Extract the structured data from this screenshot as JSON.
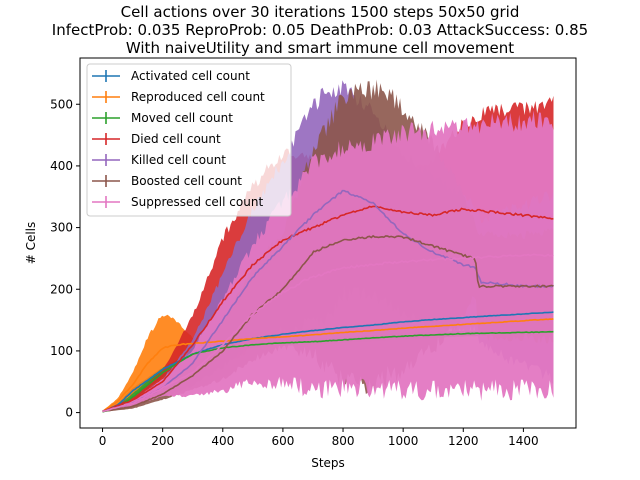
{
  "chart_data": {
    "type": "line",
    "title_lines": [
      "Cell actions over 30 iterations 1500 steps 50x50 grid",
      "InfectProb: 0.035 ReproProb: 0.05 DeathProb: 0.03 AttackSuccess: 0.85",
      "With naiveUtility and smart immune cell movement"
    ],
    "xlabel": "Steps",
    "ylabel": "# Cells",
    "xlim": [
      -75,
      1575
    ],
    "ylim": [
      -25,
      575
    ],
    "xticks": [
      0,
      200,
      400,
      600,
      800,
      1000,
      1200,
      1400
    ],
    "yticks": [
      0,
      100,
      200,
      300,
      400,
      500
    ],
    "legend_position": "upper-left",
    "error_bars": true,
    "series": [
      {
        "name": "Activated cell count",
        "color": "#1f77b4",
        "x": [
          0,
          50,
          100,
          200,
          300,
          400,
          500,
          600,
          700,
          800,
          900,
          1000,
          1100,
          1200,
          1300,
          1400,
          1500
        ],
        "mean": [
          2,
          12,
          35,
          70,
          95,
          110,
          120,
          127,
          133,
          138,
          142,
          147,
          151,
          154,
          157,
          160,
          163
        ],
        "err": [
          1,
          3,
          5,
          4,
          4,
          4,
          3,
          3,
          3,
          3,
          3,
          3,
          3,
          3,
          3,
          3,
          3
        ]
      },
      {
        "name": "Reproduced cell count",
        "color": "#ff7f0e",
        "x": [
          0,
          50,
          100,
          150,
          200,
          250,
          300,
          400,
          500,
          600,
          700,
          800,
          900,
          1000,
          1100,
          1200,
          1300,
          1400,
          1500
        ],
        "mean": [
          2,
          18,
          45,
          80,
          105,
          110,
          112,
          116,
          120,
          123,
          126,
          130,
          133,
          137,
          140,
          143,
          146,
          149,
          152
        ],
        "err": [
          1,
          5,
          20,
          45,
          60,
          40,
          10,
          6,
          5,
          4,
          4,
          4,
          4,
          4,
          4,
          4,
          4,
          4,
          4
        ]
      },
      {
        "name": "Moved cell count",
        "color": "#2ca02c",
        "x": [
          0,
          50,
          100,
          200,
          300,
          400,
          500,
          600,
          700,
          800,
          900,
          1000,
          1100,
          1200,
          1300,
          1400,
          1500
        ],
        "mean": [
          1,
          8,
          25,
          65,
          95,
          105,
          110,
          113,
          115,
          118,
          121,
          124,
          126,
          128,
          129,
          130,
          131
        ],
        "err": [
          1,
          3,
          6,
          8,
          6,
          5,
          5,
          5,
          5,
          5,
          5,
          5,
          5,
          5,
          5,
          5,
          5
        ]
      },
      {
        "name": "Died cell count",
        "color": "#d62728",
        "x": [
          0,
          100,
          200,
          300,
          400,
          500,
          600,
          700,
          800,
          900,
          1000,
          1100,
          1200,
          1300,
          1400,
          1500
        ],
        "mean": [
          2,
          20,
          50,
          110,
          180,
          240,
          280,
          300,
          320,
          335,
          325,
          320,
          330,
          325,
          320,
          315
        ],
        "err": [
          1,
          5,
          20,
          50,
          110,
          140,
          150,
          120,
          90,
          60,
          60,
          100,
          150,
          180,
          190,
          200
        ]
      },
      {
        "name": "Killed cell count",
        "color": "#9467bd",
        "x": [
          0,
          100,
          200,
          300,
          400,
          500,
          600,
          700,
          750,
          800,
          900,
          1000,
          1100,
          1200,
          1240,
          1260,
          1300,
          1400,
          1500
        ],
        "mean": [
          2,
          15,
          40,
          80,
          150,
          220,
          270,
          320,
          340,
          360,
          340,
          290,
          260,
          240,
          235,
          210,
          210,
          205,
          205
        ],
        "err": [
          1,
          5,
          15,
          40,
          80,
          120,
          150,
          190,
          200,
          180,
          160,
          140,
          130,
          120,
          110,
          110,
          120,
          140,
          160
        ]
      },
      {
        "name": "Boosted cell count",
        "color": "#8c564b",
        "x": [
          0,
          100,
          200,
          300,
          400,
          500,
          600,
          700,
          800,
          900,
          1000,
          1100,
          1200,
          1240,
          1250,
          1300,
          1400,
          1500
        ],
        "mean": [
          2,
          10,
          30,
          60,
          100,
          160,
          200,
          260,
          280,
          285,
          285,
          270,
          255,
          250,
          205,
          205,
          205,
          205
        ],
        "err": [
          1,
          4,
          10,
          25,
          50,
          80,
          100,
          180,
          250,
          260,
          230,
          180,
          110,
          60,
          90,
          90,
          90,
          95
        ]
      },
      {
        "name": "Suppressed cell count",
        "color": "#e377c2",
        "x": [
          0,
          100,
          200,
          300,
          400,
          500,
          600,
          660,
          670,
          800,
          1000,
          1200,
          1400,
          1500
        ],
        "mean": [
          2,
          15,
          40,
          65,
          110,
          160,
          195,
          210,
          215,
          235,
          245,
          250,
          255,
          255
        ],
        "err": [
          1,
          5,
          15,
          40,
          80,
          120,
          160,
          180,
          195,
          210,
          225,
          232,
          235,
          235
        ]
      }
    ]
  }
}
